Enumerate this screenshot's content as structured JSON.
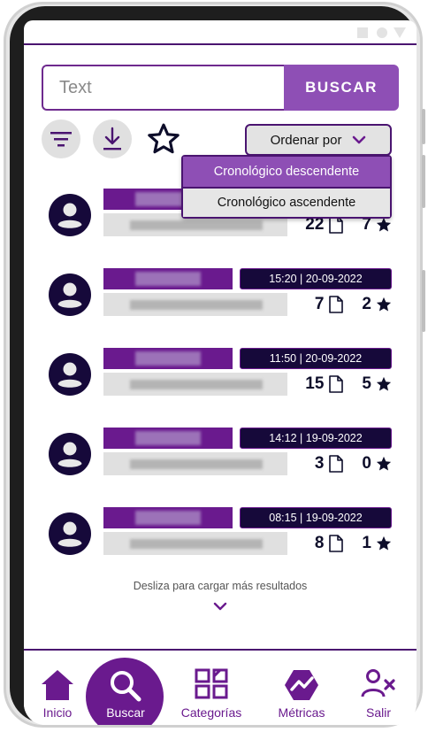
{
  "search": {
    "placeholder": "Text",
    "button_label": "BUSCAR"
  },
  "toolbar": {
    "filter_icon": "filter-icon",
    "download_icon": "download-icon",
    "favorite_icon": "star-outline-icon"
  },
  "sort": {
    "label": "Ordenar por",
    "options": [
      {
        "label": "Cronológico descendente",
        "selected": true
      },
      {
        "label": "Cronológico ascendente",
        "selected": false
      }
    ]
  },
  "results": [
    {
      "time": "",
      "docs": "22",
      "stars": "7"
    },
    {
      "time": "15:20  |  20-09-2022",
      "docs": "7",
      "stars": "2"
    },
    {
      "time": "11:50  |  20-09-2022",
      "docs": "15",
      "stars": "5"
    },
    {
      "time": "14:12  |  19-09-2022",
      "docs": "3",
      "stars": "0"
    },
    {
      "time": "08:15  |  19-09-2022",
      "docs": "8",
      "stars": "1"
    }
  ],
  "load_more": "Desliza para cargar más resultados",
  "nav": [
    {
      "label": "Inicio",
      "icon": "home-icon",
      "active": false
    },
    {
      "label": "Buscar",
      "icon": "search-icon",
      "active": true
    },
    {
      "label": "Categorías",
      "icon": "categories-icon",
      "active": false
    },
    {
      "label": "Métricas",
      "icon": "metrics-icon",
      "active": false
    },
    {
      "label": "Salir",
      "icon": "logout-user-icon",
      "active": false
    }
  ],
  "colors": {
    "primary": "#6a1a8e",
    "accent": "#8e4fb5",
    "dark": "#16093a",
    "muted": "#e0e0e0"
  }
}
